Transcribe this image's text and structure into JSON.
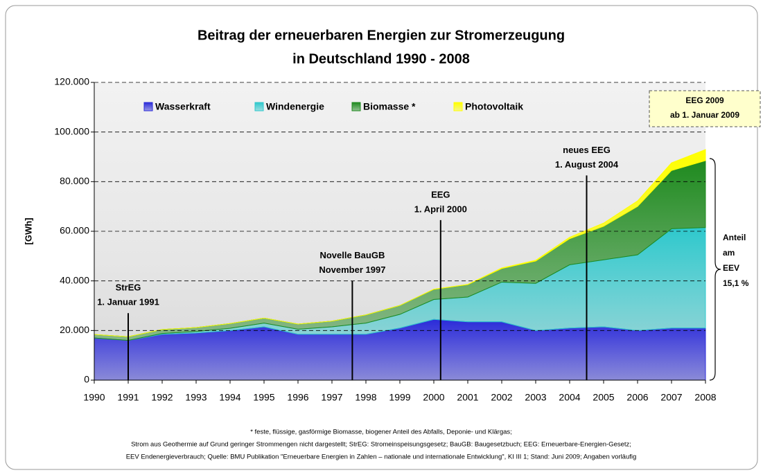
{
  "chart_data": {
    "type": "stacked-area",
    "title": [
      "Beitrag der erneuerbaren Energien zur Stromerzeugung",
      "in Deutschland 1990 - 2008"
    ],
    "y_label": "[GWh]",
    "x": [
      1990,
      1991,
      1992,
      1993,
      1994,
      1995,
      1996,
      1997,
      1998,
      1999,
      2000,
      2001,
      2002,
      2003,
      2004,
      2005,
      2006,
      2007,
      2008
    ],
    "xlim": [
      1990,
      2008
    ],
    "xticks": [
      1990,
      1991,
      1992,
      1993,
      1994,
      1995,
      1996,
      1997,
      1998,
      1999,
      2000,
      2001,
      2002,
      2003,
      2004,
      2005,
      2006,
      2007,
      2008
    ],
    "ylim": [
      0,
      120000
    ],
    "yticks": [
      0,
      {
        "value": 20000,
        "label": "20.000"
      },
      {
        "value": 40000,
        "label": "40.000"
      },
      {
        "value": 60000,
        "label": "60.000"
      },
      {
        "value": 80000,
        "label": "80.000"
      },
      {
        "value": 100000,
        "label": "100.000"
      },
      {
        "value": 120000,
        "label": "120.000"
      }
    ],
    "grid": true,
    "series": [
      {
        "name": "Wasserkraft",
        "color": "#2b2bd9",
        "values": [
          17000,
          16000,
          18500,
          19000,
          20000,
          21500,
          18500,
          18500,
          18500,
          21000,
          24500,
          23500,
          23500,
          20000,
          21000,
          21500,
          20000,
          21000,
          21000
        ]
      },
      {
        "name": "Windenergie",
        "color": "#2ec8cc",
        "values": [
          0,
          0,
          300,
          600,
          900,
          1500,
          2000,
          3000,
          4500,
          5500,
          8000,
          10000,
          16000,
          19000,
          25500,
          27000,
          30500,
          40000,
          40500
        ]
      },
      {
        "name": "Biomasse *",
        "color": "#1f8a1f",
        "values": [
          1400,
          1500,
          1600,
          1600,
          1900,
          2000,
          2100,
          2300,
          3300,
          3600,
          4100,
          5000,
          5500,
          9000,
          10500,
          13500,
          19500,
          23500,
          27000
        ]
      },
      {
        "name": "Photovoltaik",
        "color": "#ffff00",
        "values": [
          0,
          0,
          0,
          0,
          0,
          0,
          0,
          0,
          0,
          0,
          60,
          100,
          200,
          300,
          560,
          1280,
          2220,
          3080,
          4420
        ]
      }
    ],
    "annotations": [
      {
        "lines": [
          "StrEG",
          "1. Januar 1991"
        ],
        "x": 1991,
        "y": 27000
      },
      {
        "lines": [
          "Novelle BauGB",
          "November 1997"
        ],
        "x": 1997.6,
        "y": 40000
      },
      {
        "lines": [
          "EEG",
          "1. April 2000"
        ],
        "x": 2000.2,
        "y": 64500
      },
      {
        "lines": [
          "neues EEG",
          "1. August  2004"
        ],
        "x": 2004.5,
        "y": 82500
      }
    ],
    "box": [
      "EEG 2009",
      "ab 1. Januar 2009"
    ],
    "brace_label": [
      "Anteil",
      "am",
      "EEV",
      "15,1 %"
    ],
    "footnote": [
      "* feste, flüssige, gasförmige Biomasse, biogener Anteil des Abfalls, Deponie- und Klärgas;",
      "Strom aus Geothermie auf Grund geringer Strommengen nicht dargestellt; StrEG: Stromeinspeisungsgesetz; BauGB: Baugesetzbuch; EEG: Erneuerbare-Energien-Gesetz;",
      "EEV Endenergieverbrauch; Quelle: BMU Publikation \"Erneuerbare Energien in Zahlen – nationale und internationale Entwicklung\", KI III 1; Stand: Juni 2009; Angaben vorläufig"
    ]
  }
}
